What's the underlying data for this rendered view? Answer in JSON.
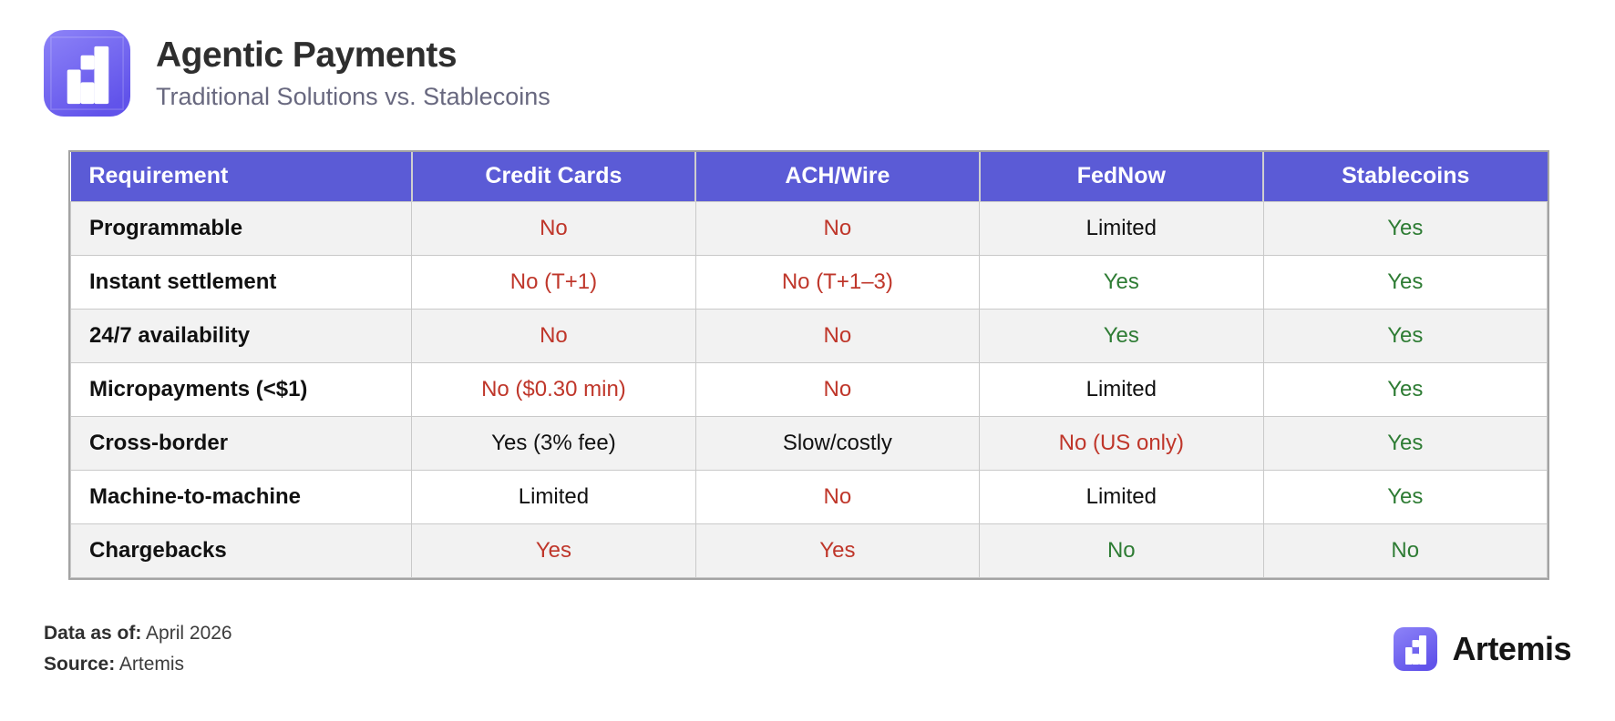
{
  "header": {
    "title": "Agentic Payments",
    "subtitle": "Traditional Solutions vs. Stablecoins"
  },
  "chart_data": {
    "type": "table",
    "columns": [
      "Requirement",
      "Credit Cards",
      "ACH/Wire",
      "FedNow",
      "Stablecoins"
    ],
    "rows": [
      {
        "label": "Programmable",
        "label_tone": "default",
        "cells": [
          {
            "text": "No",
            "tone": "bad"
          },
          {
            "text": "No",
            "tone": "bad"
          },
          {
            "text": "Limited",
            "tone": "neutral"
          },
          {
            "text": "Yes",
            "tone": "good"
          }
        ]
      },
      {
        "label": "Instant settlement",
        "label_tone": "default",
        "cells": [
          {
            "text": "No (T+1)",
            "tone": "bad"
          },
          {
            "text": "No (T+1–3)",
            "tone": "bad"
          },
          {
            "text": "Yes",
            "tone": "good"
          },
          {
            "text": "Yes",
            "tone": "good"
          }
        ]
      },
      {
        "label": "24/7 availability",
        "label_tone": "default",
        "cells": [
          {
            "text": "No",
            "tone": "bad"
          },
          {
            "text": "No",
            "tone": "bad"
          },
          {
            "text": "Yes",
            "tone": "good"
          },
          {
            "text": "Yes",
            "tone": "good"
          }
        ]
      },
      {
        "label": "Micropayments (<$1)",
        "label_tone": "default",
        "cells": [
          {
            "text": "No ($0.30 min)",
            "tone": "bad"
          },
          {
            "text": "No",
            "tone": "bad"
          },
          {
            "text": "Limited",
            "tone": "neutral"
          },
          {
            "text": "Yes",
            "tone": "good"
          }
        ]
      },
      {
        "label": "Cross-border",
        "label_tone": "default",
        "cells": [
          {
            "text": "Yes (3% fee)",
            "tone": "neutral"
          },
          {
            "text": "Slow/costly",
            "tone": "neutral"
          },
          {
            "text": "No (US only)",
            "tone": "bad"
          },
          {
            "text": "Yes",
            "tone": "good"
          }
        ]
      },
      {
        "label": "Machine-to-machine",
        "label_tone": "default",
        "cells": [
          {
            "text": "Limited",
            "tone": "neutral"
          },
          {
            "text": "No",
            "tone": "bad"
          },
          {
            "text": "Limited",
            "tone": "neutral"
          },
          {
            "text": "Yes",
            "tone": "good"
          }
        ]
      },
      {
        "label": "Chargebacks",
        "label_tone": "bad",
        "cells": [
          {
            "text": "Yes",
            "tone": "bad"
          },
          {
            "text": "Yes",
            "tone": "bad"
          },
          {
            "text": "No",
            "tone": "good"
          },
          {
            "text": "No",
            "tone": "good"
          }
        ]
      }
    ]
  },
  "footer": {
    "data_as_of_label": "Data as of:",
    "data_as_of_value": "April 2026",
    "source_label": "Source:",
    "source_value": "Artemis",
    "brand_name": "Artemis"
  },
  "colors": {
    "header_bg": "#5b5bd6",
    "bad": "#bf362a",
    "good": "#2e7c34",
    "accent_top": "#8d83f8",
    "accent_bottom": "#6153ea"
  }
}
